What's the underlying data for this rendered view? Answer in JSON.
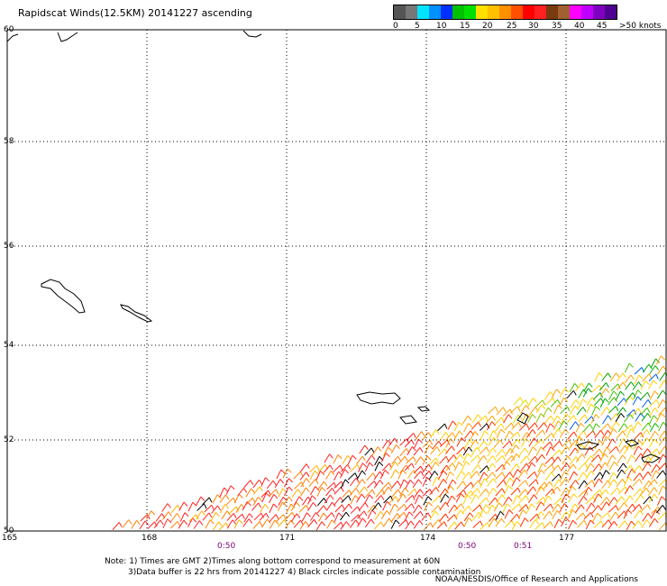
{
  "title": "Rapidscat Winds(12.5KM) 20141227 ascending",
  "scale": {
    "labels": [
      "0",
      "5",
      "10",
      "15",
      "20",
      "25",
      "30",
      "35",
      "40",
      "45",
      ">50 knots"
    ],
    "colors": [
      "#555555",
      "#777777",
      "#00e5ff",
      "#0090ff",
      "#0030ff",
      "#00c000",
      "#00e000",
      "#ffe000",
      "#ffc000",
      "#ff9000",
      "#ff5000",
      "#ff0000",
      "#ff2020",
      "#7a3a10",
      "#a06030",
      "#ff00ff",
      "#c000ff",
      "#8000c0",
      "#500090"
    ]
  },
  "map": {
    "latitudes": [
      "60",
      "58",
      "56",
      "54",
      "52",
      "50"
    ],
    "longitudes": [
      "165",
      "168",
      "171",
      "174",
      "177"
    ],
    "times": [
      "0:50",
      "0:50",
      "0:51"
    ]
  },
  "notes": {
    "line1": "Note: 1) Times are GMT 2)Times along bottom correspond to measurement at 60N",
    "line2": "3)Data buffer is 22 hrs from 20141227 4) Black circles indicate possible contamination"
  },
  "credit": "NOAA/NESDIS/Office of Research and Applications"
}
